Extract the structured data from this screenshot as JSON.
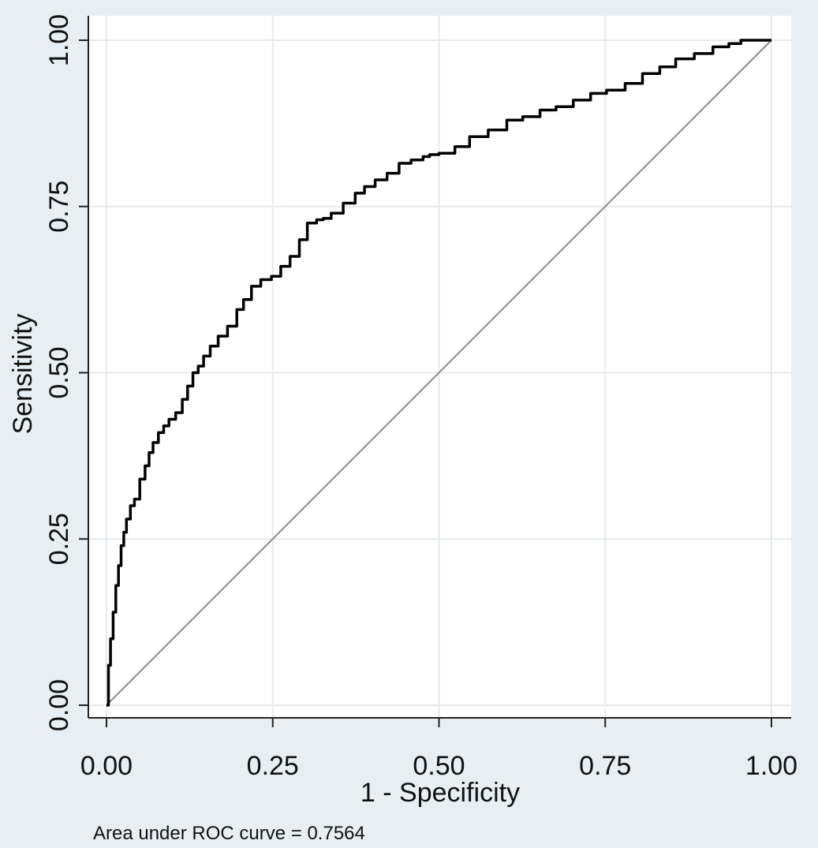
{
  "chart_data": {
    "type": "line",
    "title": "",
    "xlabel": "1 - Specificity",
    "ylabel": "Sensitivity",
    "xlim": [
      0,
      1
    ],
    "ylim": [
      0,
      1
    ],
    "x_ticks": [
      "0.00",
      "0.25",
      "0.50",
      "0.75",
      "1.00"
    ],
    "y_ticks": [
      "0.00",
      "0.25",
      "0.50",
      "0.75",
      "1.00"
    ],
    "grid": true,
    "note": "Area under ROC curve = 0.7564",
    "colors": {
      "background": "#e8eff4",
      "plot": "#ffffff",
      "grid": "#e6eaee",
      "curve": "#000000",
      "reference": "#8a8a8a"
    },
    "series": [
      {
        "x": [
          0.0,
          0.003,
          0.006,
          0.01,
          0.014,
          0.018,
          0.022,
          0.026,
          0.03,
          0.036,
          0.042,
          0.05,
          0.058,
          0.064,
          0.07,
          0.078,
          0.086,
          0.094,
          0.104,
          0.114,
          0.122,
          0.13,
          0.138,
          0.146,
          0.156,
          0.168,
          0.182,
          0.196,
          0.206,
          0.218,
          0.232,
          0.248,
          0.262,
          0.276,
          0.29,
          0.302,
          0.316,
          0.326,
          0.338,
          0.356,
          0.374,
          0.388,
          0.404,
          0.422,
          0.44,
          0.458,
          0.476,
          0.486,
          0.5,
          0.524,
          0.546,
          0.574,
          0.602,
          0.626,
          0.652,
          0.676,
          0.702,
          0.728,
          0.752,
          0.78,
          0.806,
          0.832,
          0.856,
          0.884,
          0.912,
          0.936,
          0.954,
          1.0
        ],
        "y": [
          0.0,
          0.06,
          0.1,
          0.14,
          0.18,
          0.21,
          0.24,
          0.26,
          0.28,
          0.3,
          0.31,
          0.34,
          0.36,
          0.38,
          0.395,
          0.41,
          0.42,
          0.43,
          0.44,
          0.46,
          0.48,
          0.5,
          0.51,
          0.525,
          0.54,
          0.555,
          0.57,
          0.595,
          0.61,
          0.63,
          0.64,
          0.645,
          0.66,
          0.675,
          0.7,
          0.725,
          0.73,
          0.732,
          0.74,
          0.755,
          0.77,
          0.78,
          0.79,
          0.8,
          0.815,
          0.82,
          0.825,
          0.828,
          0.83,
          0.84,
          0.855,
          0.865,
          0.88,
          0.885,
          0.895,
          0.9,
          0.91,
          0.92,
          0.925,
          0.935,
          0.95,
          0.96,
          0.972,
          0.98,
          0.99,
          0.995,
          1.0,
          1.0
        ]
      },
      {
        "x": [
          0,
          1
        ],
        "y": [
          0,
          1
        ]
      }
    ]
  }
}
